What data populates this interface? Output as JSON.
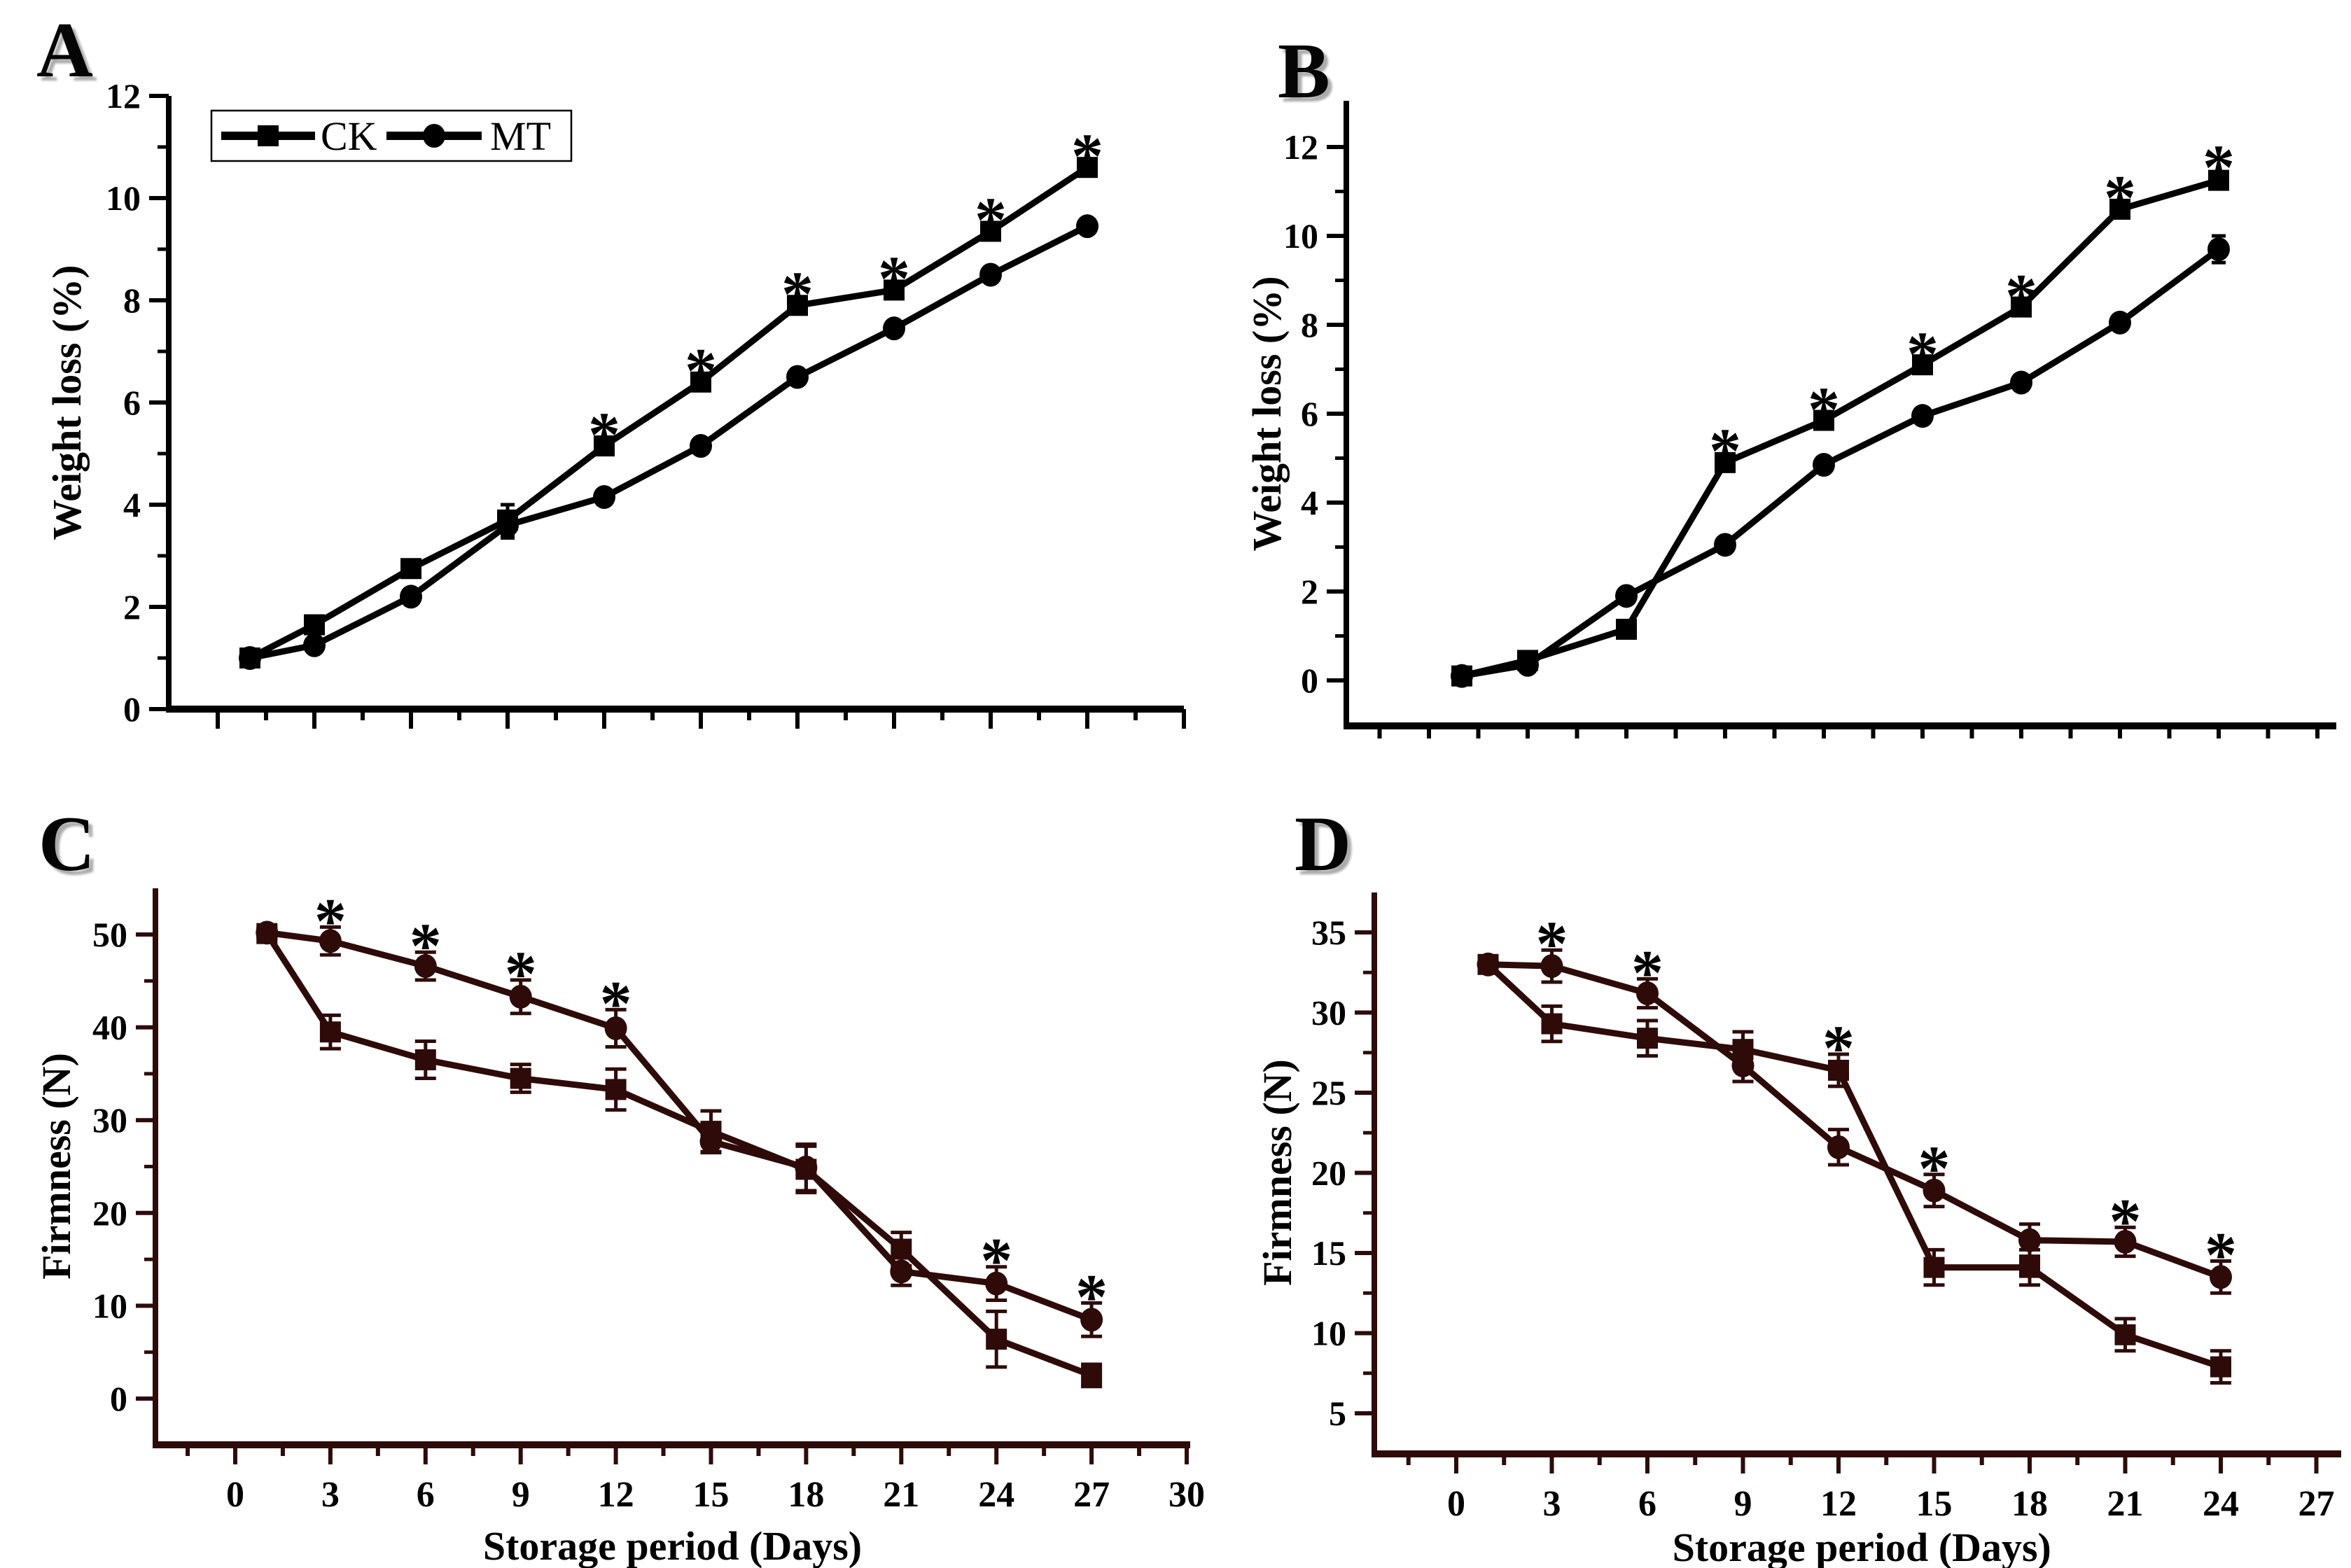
{
  "figure": {
    "background": "#ffffff",
    "sig_symbol": "*",
    "series_colors": {
      "panels_AB": "#000000",
      "panels_CD": "#2e0b09"
    }
  },
  "chart_data": [
    {
      "panel_label": "A",
      "type": "line",
      "title": "",
      "xlabel": "",
      "ylabel": "Weight loss (%)",
      "x_days": [
        1,
        3,
        6,
        9,
        12,
        15,
        18,
        21,
        24,
        27
      ],
      "ylim": [
        0,
        12
      ],
      "yticks": [
        0,
        2,
        4,
        6,
        8,
        10,
        12
      ],
      "xticks": [
        0,
        3,
        6,
        9,
        12,
        15,
        18,
        21,
        24,
        27,
        30
      ],
      "show_xtick_labels": false,
      "grid": false,
      "line_color": "#000000",
      "legend": {
        "position": "top-left",
        "entries": [
          {
            "label": "CK",
            "marker": "square"
          },
          {
            "label": "MT",
            "marker": "circle"
          }
        ]
      },
      "series": [
        {
          "name": "CK",
          "marker": "square",
          "values": [
            1.0,
            1.65,
            2.75,
            3.7,
            5.15,
            6.4,
            7.9,
            8.2,
            9.35,
            10.6
          ],
          "errors": [
            0.05,
            0.05,
            0.05,
            0.3,
            0.1,
            0.1,
            0.1,
            0.1,
            0.1,
            0.1
          ],
          "significant_days": [
            12,
            15,
            18,
            21,
            24,
            27
          ]
        },
        {
          "name": "MT",
          "marker": "circle",
          "values": [
            1.0,
            1.25,
            2.2,
            3.6,
            4.15,
            5.15,
            6.5,
            7.45,
            8.5,
            9.45
          ],
          "errors": [
            0.05,
            0.05,
            0.05,
            0.25,
            0.1,
            0.1,
            0.1,
            0.1,
            0.1,
            0.1
          ],
          "significant_days": []
        }
      ]
    },
    {
      "panel_label": "B",
      "type": "line",
      "title": "",
      "xlabel": "",
      "ylabel": "Weight loss (%)",
      "x_days": [
        1,
        3,
        6,
        9,
        12,
        15,
        18,
        21,
        24
      ],
      "ylim": [
        0,
        12
      ],
      "yticks": [
        0,
        2,
        4,
        6,
        8,
        10,
        12
      ],
      "xticks": [
        0,
        3,
        6,
        9,
        12,
        15,
        18,
        21,
        24,
        27
      ],
      "show_xtick_labels": false,
      "grid": false,
      "line_color": "#000000",
      "legend": null,
      "series": [
        {
          "name": "CK",
          "marker": "square",
          "values": [
            0.1,
            0.45,
            1.15,
            4.9,
            5.85,
            7.1,
            8.4,
            10.6,
            11.25
          ],
          "errors": [
            0.05,
            0.05,
            0.08,
            0.12,
            0.1,
            0.1,
            0.1,
            0.12,
            0.15
          ],
          "significant_days": [
            9,
            12,
            15,
            18,
            21,
            24
          ]
        },
        {
          "name": "MT",
          "marker": "circle",
          "values": [
            0.1,
            0.35,
            1.9,
            3.05,
            4.85,
            5.95,
            6.7,
            8.05,
            9.7
          ],
          "errors": [
            0.05,
            0.05,
            0.08,
            0.1,
            0.1,
            0.1,
            0.1,
            0.1,
            0.3
          ],
          "significant_days": []
        }
      ]
    },
    {
      "panel_label": "C",
      "type": "line",
      "title": "",
      "xlabel": "Storage period (Days)",
      "ylabel": "Firmness (N)",
      "x_days": [
        1,
        3,
        6,
        9,
        12,
        15,
        18,
        21,
        24,
        27
      ],
      "ylim": [
        0,
        50
      ],
      "yticks": [
        0,
        10,
        20,
        30,
        40,
        50
      ],
      "xticks": [
        0,
        3,
        6,
        9,
        12,
        15,
        18,
        21,
        24,
        27,
        30
      ],
      "show_xtick_labels": true,
      "grid": false,
      "line_color": "#2e0b09",
      "legend": null,
      "series": [
        {
          "name": "CK",
          "marker": "square",
          "values": [
            50.1,
            39.5,
            36.5,
            34.5,
            33.3,
            28.8,
            24.7,
            16.1,
            6.4,
            2.5
          ],
          "errors": [
            0.5,
            1.8,
            2.0,
            1.5,
            2.2,
            2.2,
            2.5,
            1.8,
            3.0,
            1.2
          ],
          "significant_days": []
        },
        {
          "name": "MT",
          "marker": "circle",
          "values": [
            50.2,
            49.3,
            46.6,
            43.3,
            39.9,
            27.7,
            24.9,
            13.7,
            12.4,
            8.5
          ],
          "errors": [
            0.4,
            1.5,
            1.5,
            1.8,
            2.0,
            1.2,
            2.5,
            1.5,
            1.8,
            1.8
          ],
          "significant_days": [
            3,
            6,
            9,
            12,
            24,
            27
          ]
        }
      ]
    },
    {
      "panel_label": "D",
      "type": "line",
      "title": "",
      "xlabel": "Storage period (Days)",
      "ylabel": "Firmness (N)",
      "x_days": [
        1,
        3,
        6,
        9,
        12,
        15,
        18,
        21,
        24
      ],
      "ylim": [
        5,
        35
      ],
      "yticks": [
        5,
        10,
        15,
        20,
        25,
        30,
        35
      ],
      "xticks": [
        0,
        3,
        6,
        9,
        12,
        15,
        18,
        21,
        24,
        27
      ],
      "show_xtick_labels": true,
      "grid": false,
      "line_color": "#2e0b09",
      "legend": null,
      "series": [
        {
          "name": "CK",
          "marker": "square",
          "values": [
            33.0,
            29.3,
            28.4,
            27.7,
            26.4,
            14.1,
            14.1,
            9.9,
            7.9
          ],
          "errors": [
            0.4,
            1.1,
            1.1,
            1.1,
            1.0,
            1.1,
            1.1,
            1.0,
            1.0
          ],
          "significant_days": [
            12
          ]
        },
        {
          "name": "MT",
          "marker": "circle",
          "values": [
            33.0,
            32.9,
            31.2,
            26.7,
            21.6,
            18.9,
            15.8,
            15.7,
            13.5
          ],
          "errors": [
            0.3,
            1.0,
            0.9,
            1.0,
            1.1,
            1.0,
            1.0,
            0.9,
            1.0
          ],
          "significant_days": [
            3,
            6,
            15,
            21,
            24
          ]
        }
      ]
    }
  ]
}
